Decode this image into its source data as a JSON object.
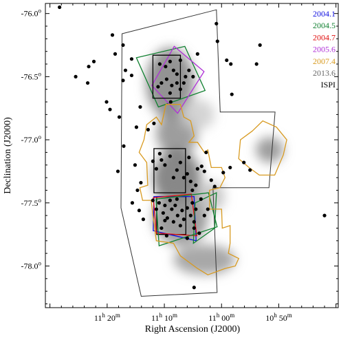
{
  "chart_data": {
    "type": "scatter",
    "xlabel": "Right Ascension (J2000)",
    "ylabel": "Declination (J2000)",
    "xlim_hours": [
      11.5133,
      10.66
    ],
    "ylim_deg": [
      -78.33,
      -75.92
    ],
    "x_ticks": [
      {
        "h": "11",
        "m": "20",
        "value": 11.3333
      },
      {
        "h": "11",
        "m": "10",
        "value": 11.1667
      },
      {
        "h": "11",
        "m": "00",
        "value": 11.0
      },
      {
        "h": "10",
        "m": "50",
        "value": 10.8333
      }
    ],
    "y_ticks": [
      {
        "label": "-76.0",
        "sup": "o",
        "value": -76.0
      },
      {
        "label": "-76.5",
        "sup": "o",
        "value": -76.5
      },
      {
        "label": "-77.0",
        "sup": "o",
        "value": -77.0
      },
      {
        "label": "-77.5",
        "sup": "o",
        "value": -77.5
      },
      {
        "label": "-78.0",
        "sup": "o",
        "value": -78.0
      }
    ],
    "legend": [
      {
        "label": "2004.1",
        "color": "#1010e0"
      },
      {
        "label": "2004.5",
        "color": "#108030"
      },
      {
        "label": "2004.7",
        "color": "#e01010"
      },
      {
        "label": "2005.6",
        "color": "#b030d8"
      },
      {
        "label": "2007.4",
        "color": "#d89a20"
      },
      {
        "label": "2013.6",
        "color": "#666666"
      },
      {
        "label": "ISPI",
        "color": "#000000"
      }
    ],
    "survey_outline": {
      "color": "#333333",
      "points": [
        [
          11.29,
          -76.16
        ],
        [
          11.015,
          -75.97
        ],
        [
          11.004,
          -76.78
        ],
        [
          10.844,
          -76.78
        ],
        [
          10.862,
          -77.38
        ],
        [
          11.025,
          -77.38
        ],
        [
          11.013,
          -78.21
        ],
        [
          11.234,
          -78.24
        ],
        [
          11.293,
          -77.54
        ]
      ]
    },
    "fields": [
      {
        "epoch": "2004.5",
        "color": "#108030",
        "points": [
          [
            11.248,
            -76.35
          ],
          [
            11.107,
            -76.26
          ],
          [
            11.048,
            -76.61
          ],
          [
            11.184,
            -76.74
          ]
        ]
      },
      {
        "epoch": "2005.6",
        "color": "#b030d8",
        "points": [
          [
            11.203,
            -76.57
          ],
          [
            11.138,
            -76.26
          ],
          [
            11.051,
            -76.46
          ],
          [
            11.128,
            -76.79
          ]
        ]
      },
      {
        "epoch": "ISPI",
        "color": "#000000",
        "points": [
          [
            11.2,
            -76.33
          ],
          [
            11.12,
            -76.33
          ],
          [
            11.12,
            -76.67
          ],
          [
            11.2,
            -76.67
          ]
        ]
      },
      {
        "epoch": "ISPI",
        "color": "#000000",
        "points": [
          [
            11.197,
            -77.07
          ],
          [
            11.105,
            -77.07
          ],
          [
            11.105,
            -77.42
          ],
          [
            11.197,
            -77.42
          ]
        ]
      },
      {
        "epoch": "ISPI",
        "color": "#000000",
        "points": [
          [
            11.189,
            -77.45
          ],
          [
            11.104,
            -77.45
          ],
          [
            11.104,
            -77.75
          ],
          [
            11.189,
            -77.75
          ]
        ]
      },
      {
        "epoch": "2004.1",
        "color": "#1010e0",
        "points": [
          [
            11.197,
            -77.45
          ],
          [
            11.08,
            -77.45
          ],
          [
            11.074,
            -77.8
          ],
          [
            11.199,
            -77.72
          ]
        ]
      },
      {
        "epoch": "2004.7",
        "color": "#e01010",
        "points": [
          [
            11.199,
            -77.46
          ],
          [
            11.088,
            -77.43
          ],
          [
            11.072,
            -77.76
          ],
          [
            11.19,
            -77.74
          ]
        ]
      },
      {
        "epoch": "2004.5",
        "color": "#108030",
        "points": [
          [
            11.191,
            -77.47
          ],
          [
            11.038,
            -77.42
          ],
          [
            11.013,
            -77.69
          ],
          [
            11.182,
            -77.84
          ]
        ]
      },
      {
        "epoch": "2004.5",
        "color": "#108030",
        "points": [
          [
            11.077,
            -77.5
          ],
          [
            11.015,
            -77.42
          ],
          [
            11.02,
            -77.7
          ],
          [
            11.082,
            -77.82
          ]
        ]
      },
      {
        "epoch": "2007.4",
        "color": "#d89a20",
        "points": [
          [
            11.218,
            -76.88
          ],
          [
            11.19,
            -76.82
          ],
          [
            11.175,
            -76.88
          ],
          [
            11.162,
            -76.72
          ],
          [
            11.12,
            -76.72
          ],
          [
            11.11,
            -76.82
          ],
          [
            11.09,
            -76.85
          ],
          [
            11.08,
            -76.97
          ],
          [
            11.095,
            -77.02
          ],
          [
            11.07,
            -77.02
          ],
          [
            11.05,
            -77.1
          ],
          [
            11.04,
            -77.08
          ],
          [
            11.03,
            -77.22
          ],
          [
            11.0,
            -77.22
          ],
          [
            10.99,
            -77.3
          ],
          [
            11.005,
            -77.38
          ],
          [
            11.035,
            -77.4
          ],
          [
            11.035,
            -77.55
          ],
          [
            11.0,
            -77.55
          ],
          [
            10.998,
            -77.7
          ],
          [
            10.975,
            -77.68
          ],
          [
            10.975,
            -77.82
          ],
          [
            10.98,
            -77.9
          ],
          [
            10.95,
            -77.94
          ],
          [
            10.96,
            -78.0
          ],
          [
            10.99,
            -78.02
          ],
          [
            11.04,
            -78.07
          ],
          [
            11.07,
            -78.02
          ],
          [
            11.12,
            -77.92
          ],
          [
            11.14,
            -77.82
          ],
          [
            11.19,
            -77.8
          ],
          [
            11.2,
            -77.6
          ],
          [
            11.205,
            -77.48
          ],
          [
            11.23,
            -77.48
          ],
          [
            11.238,
            -77.38
          ],
          [
            11.215,
            -77.36
          ],
          [
            11.218,
            -77.18
          ],
          [
            11.24,
            -77.1
          ],
          [
            11.226,
            -77.0
          ]
        ]
      },
      {
        "epoch": "2007.4",
        "color": "#d89a20",
        "points": [
          [
            10.91,
            -76.93
          ],
          [
            10.88,
            -76.85
          ],
          [
            10.84,
            -76.9
          ],
          [
            10.81,
            -77.0
          ],
          [
            10.82,
            -77.12
          ],
          [
            10.845,
            -77.28
          ],
          [
            10.89,
            -77.28
          ],
          [
            10.92,
            -77.22
          ],
          [
            10.95,
            -77.15
          ],
          [
            10.945,
            -77.0
          ]
        ]
      }
    ],
    "nebula": [
      {
        "x": 11.15,
        "y": -76.55,
        "rx": 0.07,
        "ry": 0.28,
        "shade": 0.5
      },
      {
        "x": 11.13,
        "y": -76.95,
        "rx": 0.06,
        "ry": 0.18,
        "shade": 0.55
      },
      {
        "x": 11.13,
        "y": -77.3,
        "rx": 0.07,
        "ry": 0.22,
        "shade": 0.45
      },
      {
        "x": 11.12,
        "y": -77.62,
        "rx": 0.08,
        "ry": 0.22,
        "shade": 0.55
      },
      {
        "x": 11.05,
        "y": -77.95,
        "rx": 0.09,
        "ry": 0.12,
        "shade": 0.6
      },
      {
        "x": 10.86,
        "y": -77.08,
        "rx": 0.04,
        "ry": 0.1,
        "shade": 0.55
      },
      {
        "x": 11.07,
        "y": -76.8,
        "rx": 0.05,
        "ry": 0.12,
        "shade": 0.8
      },
      {
        "x": 11.03,
        "y": -77.45,
        "rx": 0.04,
        "ry": 0.12,
        "shade": 0.75
      }
    ],
    "stars": [
      [
        11.472,
        -75.95
      ],
      [
        11.318,
        -76.17
      ],
      [
        11.287,
        -76.25
      ],
      [
        11.31,
        -76.32
      ],
      [
        11.262,
        -76.36
      ],
      [
        11.387,
        -76.42
      ],
      [
        11.372,
        -76.38
      ],
      [
        11.28,
        -76.45
      ],
      [
        11.262,
        -76.49
      ],
      [
        11.287,
        -76.53
      ],
      [
        11.425,
        -76.5
      ],
      [
        11.39,
        -76.55
      ],
      [
        11.335,
        -76.7
      ],
      [
        11.325,
        -76.76
      ],
      [
        11.298,
        -76.82
      ],
      [
        11.237,
        -76.74
      ],
      [
        11.248,
        -76.9
      ],
      [
        11.214,
        -76.92
      ],
      [
        11.197,
        -76.87
      ],
      [
        11.18,
        -76.4
      ],
      [
        11.163,
        -76.42
      ],
      [
        11.15,
        -76.38
      ],
      [
        11.14,
        -76.45
      ],
      [
        11.12,
        -76.37
      ],
      [
        11.105,
        -76.5
      ],
      [
        11.095,
        -76.45
      ],
      [
        11.083,
        -76.5
      ],
      [
        11.07,
        -76.32
      ],
      [
        11.015,
        -76.08
      ],
      [
        11.012,
        -76.22
      ],
      [
        10.985,
        -76.37
      ],
      [
        10.973,
        -76.4
      ],
      [
        10.97,
        -76.64
      ],
      [
        10.898,
        -76.4
      ],
      [
        10.888,
        -76.25
      ],
      [
        11.148,
        -76.7
      ],
      [
        11.15,
        -76.63
      ],
      [
        11.145,
        -76.57
      ],
      [
        11.13,
        -76.55
      ],
      [
        11.16,
        -76.52
      ],
      [
        11.175,
        -76.55
      ],
      [
        11.185,
        -76.58
      ],
      [
        11.13,
        -76.48
      ],
      [
        11.12,
        -76.6
      ],
      [
        11.11,
        -76.55
      ],
      [
        11.285,
        -77.05
      ],
      [
        11.302,
        -77.25
      ],
      [
        11.252,
        -77.2
      ],
      [
        11.2,
        -77.17
      ],
      [
        11.19,
        -77.23
      ],
      [
        11.18,
        -77.11
      ],
      [
        11.175,
        -77.16
      ],
      [
        11.165,
        -77.2
      ],
      [
        11.15,
        -77.13
      ],
      [
        11.14,
        -77.3
      ],
      [
        11.13,
        -77.24
      ],
      [
        11.12,
        -77.18
      ],
      [
        11.11,
        -77.3
      ],
      [
        11.1,
        -77.27
      ],
      [
        11.095,
        -77.14
      ],
      [
        11.09,
        -77.33
      ],
      [
        11.085,
        -77.4
      ],
      [
        11.075,
        -77.36
      ],
      [
        11.07,
        -77.23
      ],
      [
        11.058,
        -77.21
      ],
      [
        11.05,
        -77.25
      ],
      [
        11.045,
        -77.1
      ],
      [
        11.03,
        -77.32
      ],
      [
        11.02,
        -77.37
      ],
      [
        10.995,
        -77.26
      ],
      [
        10.975,
        -77.22
      ],
      [
        10.935,
        -77.18
      ],
      [
        10.917,
        -77.24
      ],
      [
        11.235,
        -77.34
      ],
      [
        11.245,
        -77.4
      ],
      [
        11.26,
        -77.5
      ],
      [
        11.24,
        -77.56
      ],
      [
        11.228,
        -77.63
      ],
      [
        11.2,
        -77.48
      ],
      [
        11.19,
        -77.55
      ],
      [
        11.182,
        -77.5
      ],
      [
        11.17,
        -77.58
      ],
      [
        11.165,
        -77.52
      ],
      [
        11.158,
        -77.62
      ],
      [
        11.15,
        -77.48
      ],
      [
        11.145,
        -77.55
      ],
      [
        11.14,
        -77.65
      ],
      [
        11.135,
        -77.52
      ],
      [
        11.128,
        -77.6
      ],
      [
        11.12,
        -77.68
      ],
      [
        11.115,
        -77.56
      ],
      [
        11.11,
        -77.63
      ],
      [
        11.1,
        -77.54
      ],
      [
        11.09,
        -77.6
      ],
      [
        11.085,
        -77.5
      ],
      [
        11.08,
        -77.7
      ],
      [
        11.075,
        -77.55
      ],
      [
        11.06,
        -77.47
      ],
      [
        11.065,
        -77.74
      ],
      [
        11.05,
        -77.6
      ],
      [
        11.175,
        -77.7
      ],
      [
        11.16,
        -77.76
      ],
      [
        11.1,
        -77.78
      ],
      [
        11.08,
        -77.65
      ],
      [
        11.13,
        -77.47
      ],
      [
        11.165,
        -77.64
      ],
      [
        11.04,
        -77.55
      ],
      [
        10.7,
        -77.6
      ],
      [
        11.08,
        -78.17
      ]
    ]
  }
}
